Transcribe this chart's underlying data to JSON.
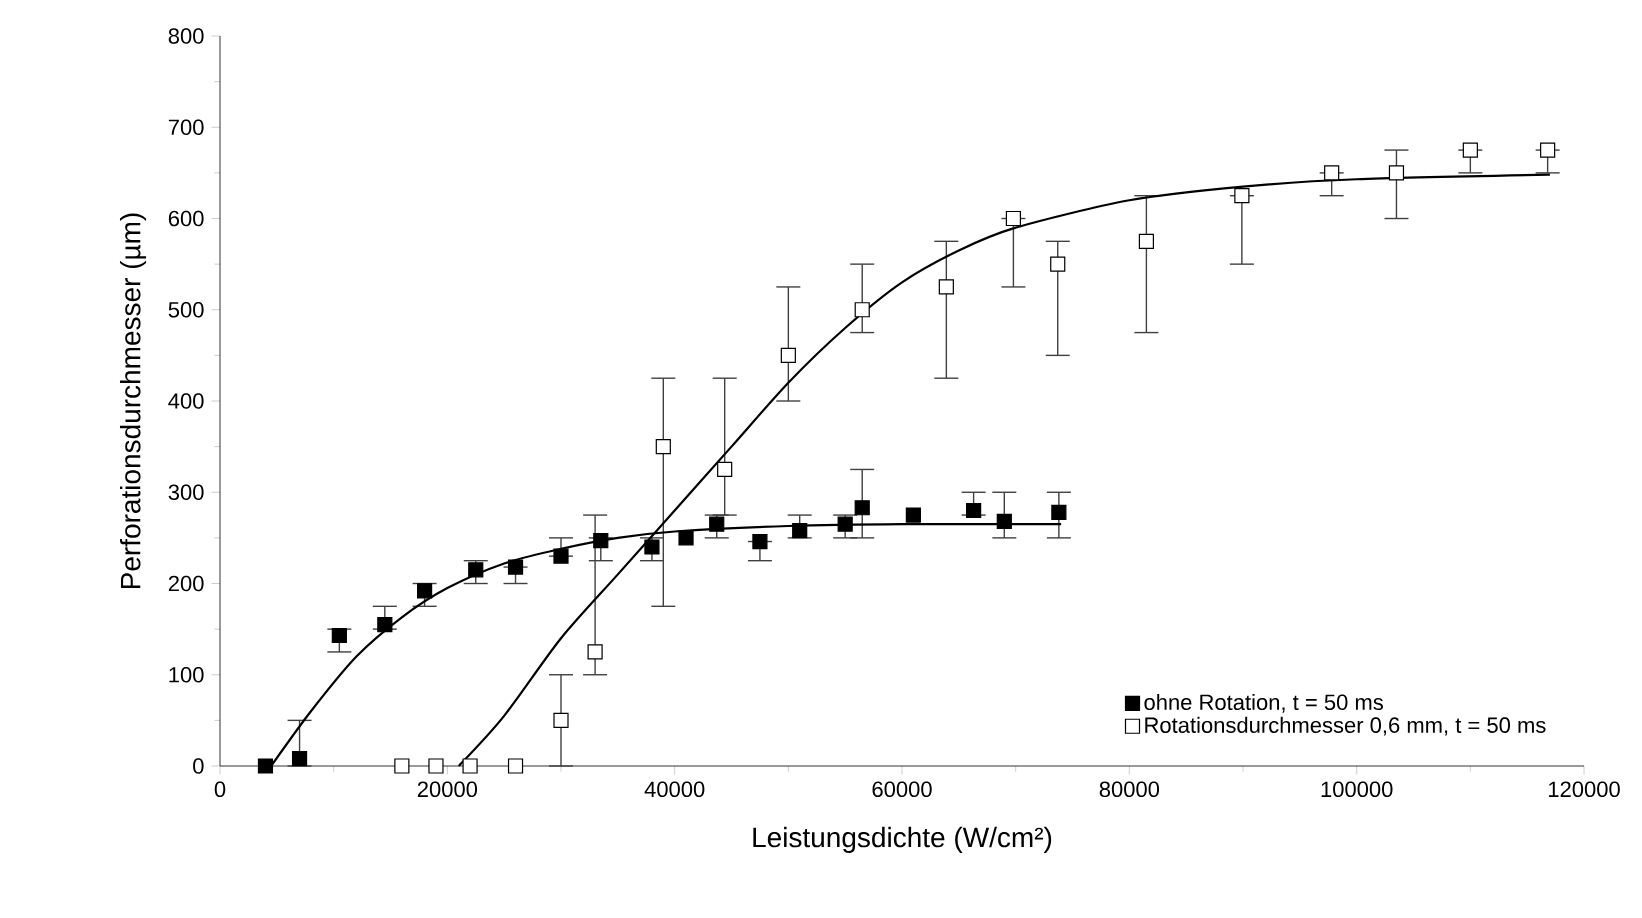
{
  "chart_data": {
    "type": "scatter",
    "xlabel": "Leistungsdichte (W/cm²)",
    "ylabel": "Perforationsdurchmesser (µm)",
    "xlim": [
      0,
      120000
    ],
    "ylim": [
      0,
      800
    ],
    "xticks": [
      0,
      20000,
      40000,
      60000,
      80000,
      100000,
      120000
    ],
    "yticks": [
      0,
      100,
      200,
      300,
      400,
      500,
      600,
      700,
      800
    ],
    "legend": "bottom right",
    "grid": false,
    "series": [
      {
        "name": "ohne Rotation, t = 50 ms",
        "color": "#000000",
        "marker": "square",
        "x": [
          4000,
          7000,
          10500,
          14500,
          18000,
          22500,
          26000,
          30000,
          33500,
          38000,
          41000,
          43700,
          47500,
          51000,
          55000,
          56500,
          61000,
          66300,
          69000,
          73800
        ],
        "values": [
          0,
          8,
          143,
          155,
          192,
          215,
          218,
          230,
          247,
          240,
          250,
          265,
          246,
          258,
          265,
          283,
          275,
          280,
          268,
          278
        ],
        "errors": [
          null,
          [
            0,
            50
          ],
          [
            125,
            150
          ],
          [
            150,
            175
          ],
          [
            175,
            200
          ],
          [
            200,
            225
          ],
          [
            200,
            218
          ],
          [
            230,
            250
          ],
          [
            225,
            250
          ],
          [
            225,
            250
          ],
          null,
          [
            250,
            275
          ],
          [
            225,
            246
          ],
          [
            250,
            275
          ],
          [
            250,
            275
          ],
          [
            250,
            325
          ],
          null,
          [
            275,
            300
          ],
          [
            250,
            300
          ],
          [
            250,
            300
          ]
        ]
      },
      {
        "name": "Rotationsdurchmesser 0,6 mm, t = 50 ms",
        "color": "#ffffff",
        "marker": "square",
        "x": [
          16000,
          19000,
          22000,
          26000,
          30000,
          33000,
          39000,
          44400,
          50000,
          56500,
          63900,
          69800,
          73700,
          81500,
          89900,
          97800,
          103500,
          110000,
          116800
        ],
        "values": [
          0,
          0,
          0,
          0,
          50,
          125,
          350,
          325,
          450,
          500,
          525,
          600,
          550,
          575,
          625,
          650,
          650,
          675,
          675
        ],
        "errors": [
          null,
          null,
          null,
          null,
          [
            0,
            100
          ],
          [
            100,
            275
          ],
          [
            175,
            425
          ],
          [
            275,
            425
          ],
          [
            400,
            525
          ],
          [
            475,
            550
          ],
          [
            425,
            575
          ],
          [
            525,
            600
          ],
          [
            450,
            575
          ],
          [
            475,
            625
          ],
          [
            550,
            625
          ],
          [
            625,
            650
          ],
          [
            600,
            675
          ],
          [
            650,
            675
          ],
          [
            650,
            675
          ]
        ]
      },
      {
        "type": "line",
        "color": "#000000",
        "marker": "none",
        "x": [
          4500,
          8000,
          12000,
          16000,
          20000,
          25000,
          30000,
          35000,
          40000,
          50000,
          60000,
          74000
        ],
        "values": [
          0,
          60,
          120,
          163,
          195,
          222,
          238,
          250,
          257,
          263,
          265,
          265
        ]
      },
      {
        "type": "line",
        "color": "#000000",
        "marker": "none",
        "x": [
          21000,
          25000,
          30000,
          35000,
          40000,
          45000,
          50000,
          55000,
          60000,
          65000,
          70000,
          80000,
          90000,
          100000,
          117000
        ],
        "values": [
          0,
          55,
          140,
          210,
          280,
          350,
          420,
          480,
          530,
          565,
          590,
          620,
          635,
          643,
          648
        ]
      }
    ]
  }
}
